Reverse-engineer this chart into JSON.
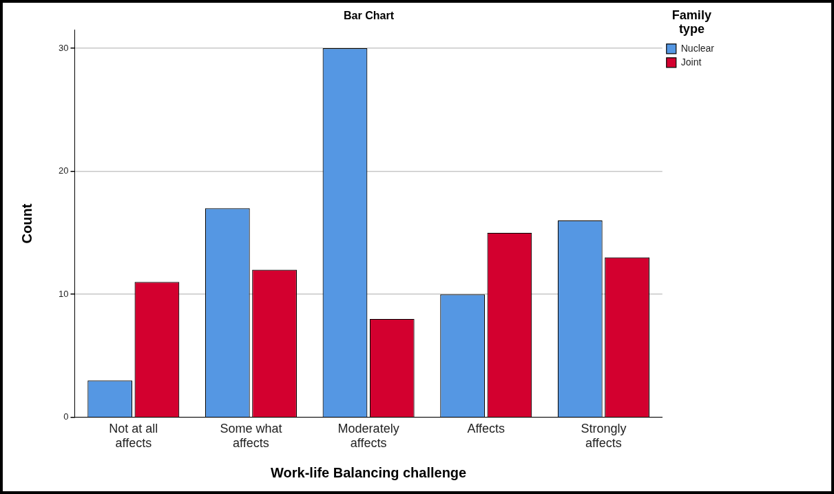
{
  "chart_data": {
    "type": "bar",
    "title": "Bar Chart",
    "xlabel": "Work-life Balancing challenge",
    "ylabel": "Count",
    "legend_title": "Family type",
    "categories": [
      "Not at all affects",
      "Some what affects",
      "Moderately affects",
      "Affects",
      "Strongly affects"
    ],
    "series": [
      {
        "name": "Nuclear",
        "color": "#5597e3",
        "values": [
          3,
          17,
          30,
          10,
          16
        ]
      },
      {
        "name": "Joint",
        "color": "#d3002f",
        "values": [
          11,
          12,
          8,
          15,
          13
        ]
      }
    ],
    "ylim": [
      0,
      31.5
    ],
    "yticks": [
      0,
      10,
      20,
      30
    ],
    "grid": "y",
    "legend": "top right"
  }
}
